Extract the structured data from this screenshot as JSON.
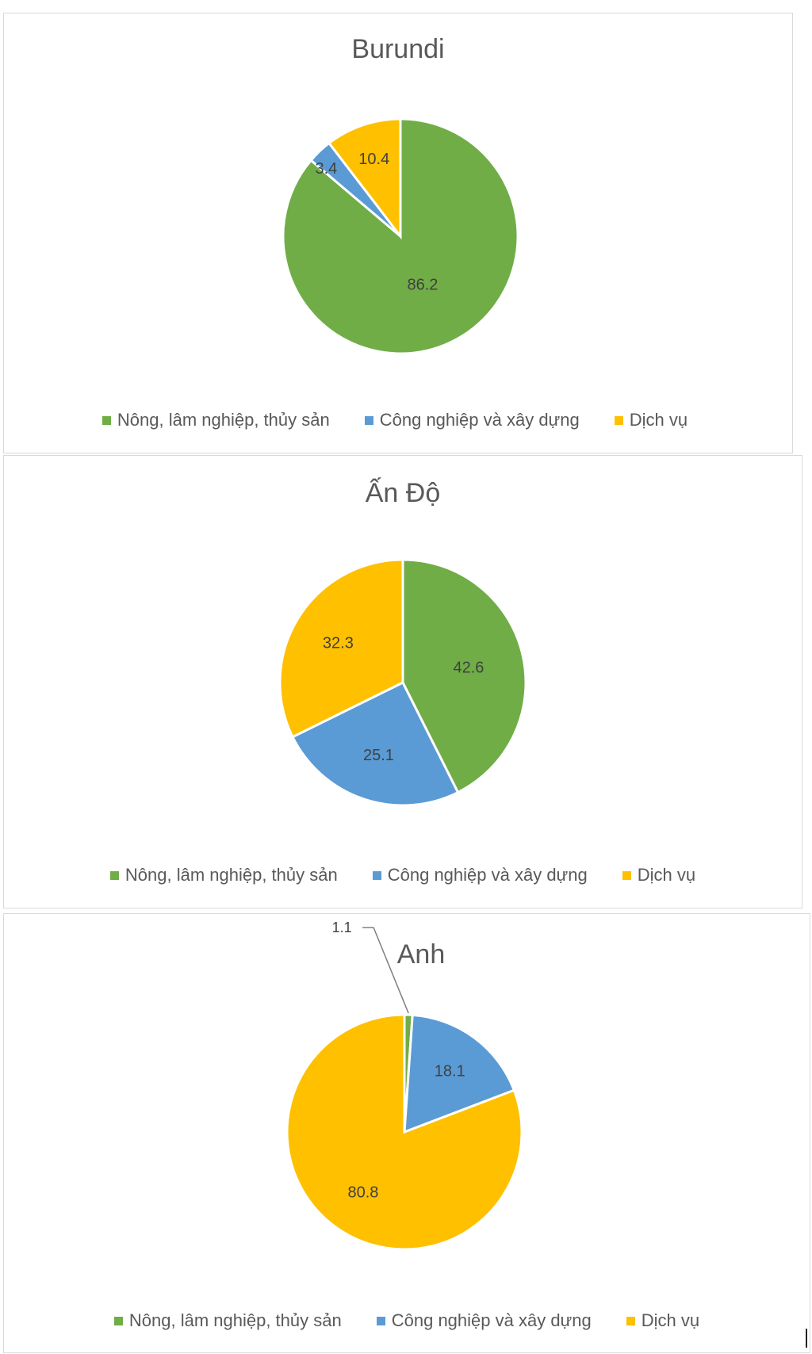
{
  "chart_data": [
    {
      "type": "pie",
      "title": "Burundi",
      "categories": [
        "Nông, lâm nghiệp, thủy sản",
        "Công nghiệp và xây dựng",
        "Dịch vụ"
      ],
      "values": [
        86.2,
        3.4,
        10.4
      ],
      "labels": [
        "86.2",
        "3.4",
        "10.4"
      ],
      "legend": "bottom"
    },
    {
      "type": "pie",
      "title": "Ấn Độ",
      "categories": [
        "Nông, lâm nghiệp, thủy sản",
        "Công nghiệp và xây dựng",
        "Dịch vụ"
      ],
      "values": [
        42.6,
        25.1,
        32.3
      ],
      "labels": [
        "42.6",
        "25.1",
        "32.3"
      ],
      "legend": "bottom"
    },
    {
      "type": "pie",
      "title": "Anh",
      "categories": [
        "Nông, lâm nghiệp, thủy sản",
        "Công nghiệp và xây dựng",
        "Dịch vụ"
      ],
      "values": [
        1.1,
        18.1,
        80.8
      ],
      "labels": [
        "1.1",
        "18.1",
        "80.8"
      ],
      "legend": "bottom"
    }
  ],
  "colors": {
    "Nông, lâm nghiệp, thủy sản": "#70ad47",
    "Công nghiệp và xây dựng": "#5b9bd5",
    "Dịch vụ": "#ffc000"
  },
  "legend_labels": [
    "Nông, lâm nghiệp, thủy sản",
    "Công nghiệp và xây dựng",
    "Dịch vụ"
  ]
}
